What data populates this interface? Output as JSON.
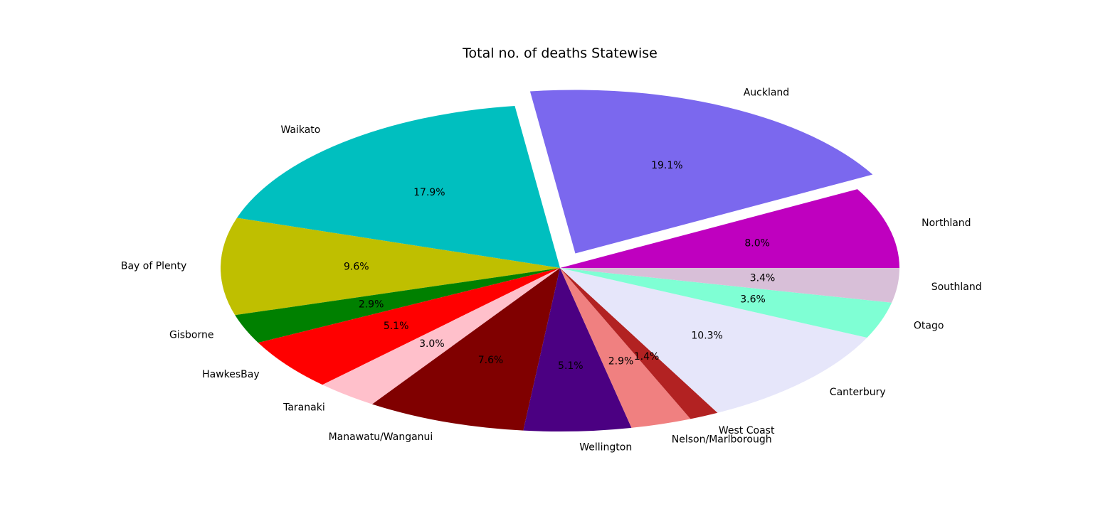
{
  "chart_data": {
    "type": "pie",
    "title": "Total no. of deaths Statewise",
    "start_angle_deg": 0,
    "direction": "counterclockwise",
    "aspect": "ellipse",
    "exploded": [
      "Auckland"
    ],
    "slices": [
      {
        "label": "Northland",
        "percent": 8.0,
        "pct_text": "8.0%",
        "color": "#bf00bf"
      },
      {
        "label": "Auckland",
        "percent": 19.1,
        "pct_text": "19.1%",
        "color": "#7b68ee"
      },
      {
        "label": "Waikato",
        "percent": 17.9,
        "pct_text": "17.9%",
        "color": "#00bfbf"
      },
      {
        "label": "Bay of Plenty",
        "percent": 9.6,
        "pct_text": "9.6%",
        "color": "#bfbf00"
      },
      {
        "label": "Gisborne",
        "percent": 2.9,
        "pct_text": "2.9%",
        "color": "#008000"
      },
      {
        "label": "HawkesBay",
        "percent": 5.1,
        "pct_text": "5.1%",
        "color": "#ff0000"
      },
      {
        "label": "Taranaki",
        "percent": 3.0,
        "pct_text": "3.0%",
        "color": "#ffc0cb"
      },
      {
        "label": "Manawatu/Wanganui",
        "percent": 7.6,
        "pct_text": "7.6%",
        "color": "#800000"
      },
      {
        "label": "Wellington",
        "percent": 5.1,
        "pct_text": "5.1%",
        "color": "#4b0082"
      },
      {
        "label": "Nelson/Marlborough",
        "percent": 2.9,
        "pct_text": "2.9%",
        "color": "#f08080"
      },
      {
        "label": "West Coast",
        "percent": 1.4,
        "pct_text": "1.4%",
        "color": "#b22222"
      },
      {
        "label": "Canterbury",
        "percent": 10.3,
        "pct_text": "10.3%",
        "color": "#e6e6fa"
      },
      {
        "label": "Otago",
        "percent": 3.6,
        "pct_text": "3.6%",
        "color": "#7fffd4"
      },
      {
        "label": "Southland",
        "percent": 3.4,
        "pct_text": "3.4%",
        "color": "#d8bfd8"
      }
    ]
  }
}
